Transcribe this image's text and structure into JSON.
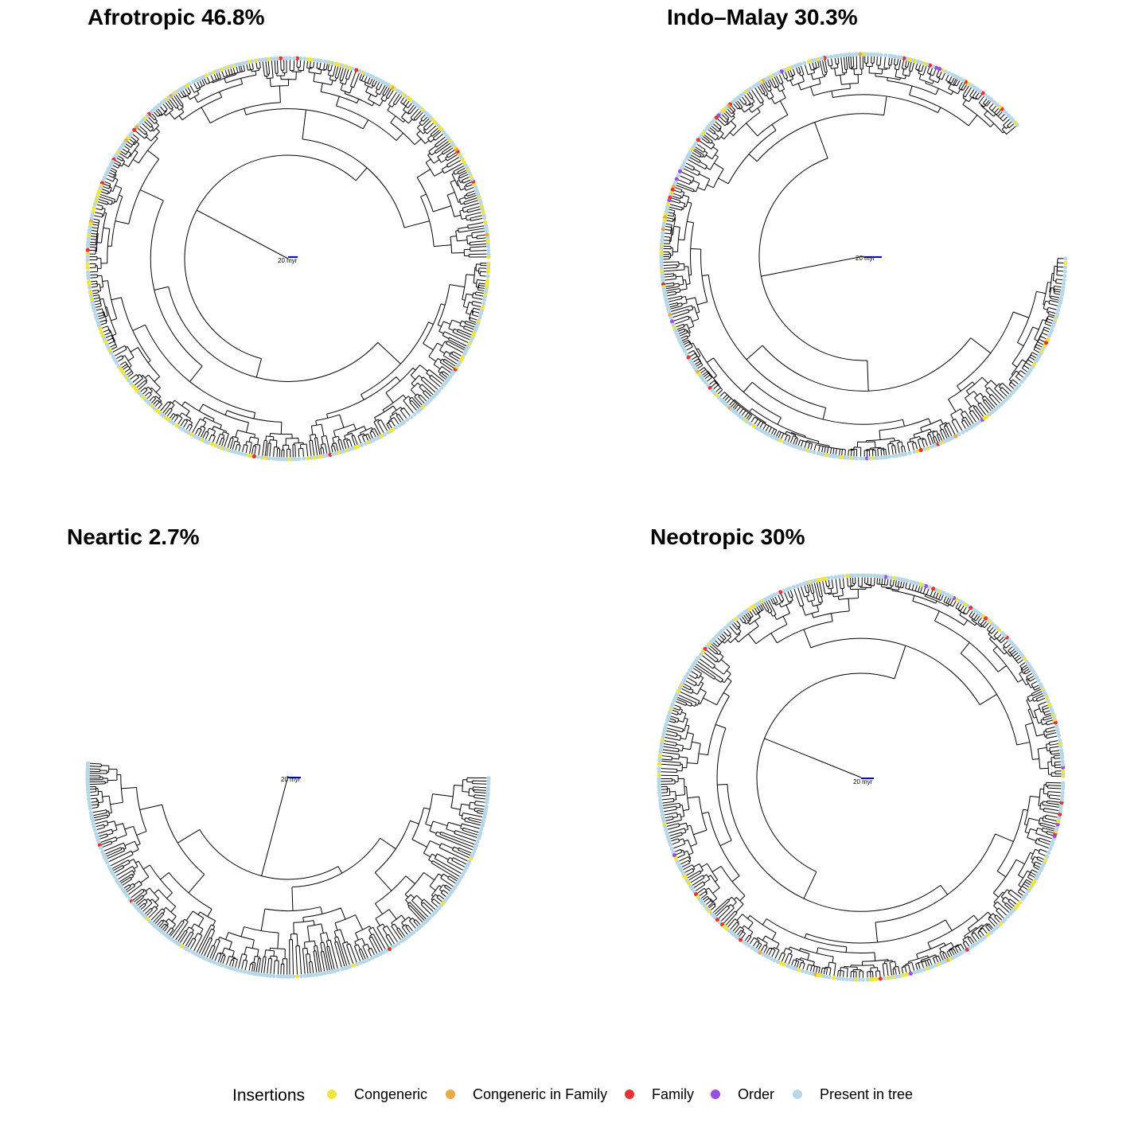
{
  "panels": [
    {
      "title": "Afrotropic 46.8%",
      "scale_label": "20 myr",
      "arc_start_deg": 0,
      "arc_end_deg": 359,
      "tip_mix": {
        "Congeneric": 0.32,
        "Family": 0.04,
        "Order": 0.0,
        "Congeneric in Family": 0.01
      }
    },
    {
      "title": "Indo–Malay 30.3%",
      "scale_label": "20 myr",
      "arc_start_deg": 40,
      "arc_end_deg": 360,
      "tip_mix": {
        "Congeneric": 0.16,
        "Family": 0.05,
        "Order": 0.02,
        "Congeneric in Family": 0.01
      }
    },
    {
      "title": "Neartic 2.7%",
      "scale_label": "20 myr",
      "arc_start_deg": 176,
      "arc_end_deg": 360,
      "tip_mix": {
        "Congeneric": 0.03,
        "Family": 0.01,
        "Order": 0.0,
        "Congeneric in Family": 0.0
      }
    },
    {
      "title": "Neotropic 30%",
      "scale_label": "20 myr",
      "arc_start_deg": 0,
      "arc_end_deg": 359,
      "tip_mix": {
        "Congeneric": 0.15,
        "Family": 0.05,
        "Order": 0.01,
        "Congeneric in Family": 0.01
      }
    }
  ],
  "legend": {
    "title": "Insertions",
    "items": [
      {
        "label": "Congeneric",
        "color": "#f0e442"
      },
      {
        "label": "Congeneric in Family",
        "color": "#e9a94a"
      },
      {
        "label": "Family",
        "color": "#e3342f"
      },
      {
        "label": "Order",
        "color": "#9b4fe0"
      },
      {
        "label": "Present in tree",
        "color": "#b8d8e8"
      }
    ]
  },
  "colors": {
    "branch": "#000000",
    "scale_bar": "#0000cc"
  }
}
